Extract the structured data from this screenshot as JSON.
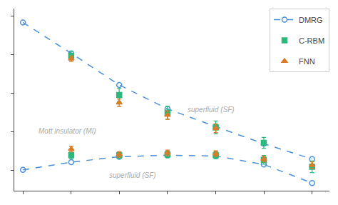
{
  "chart_data": {
    "type": "scatter",
    "x": [
      0.0,
      0.167,
      0.333,
      0.5,
      0.667,
      0.833,
      1.0
    ],
    "xlim": [
      -0.03,
      1.06
    ],
    "ylim": [
      -0.13,
      1.05
    ],
    "xticks": [
      0,
      0.16666666666666666,
      0.3333333333333333,
      0.5,
      0.6666666666666666,
      0.8333333333333334,
      1
    ],
    "yticks": [
      0.0,
      0.25,
      0.5,
      0.75,
      1.0
    ],
    "tick_labels": false,
    "grid": false,
    "legend": "upper right",
    "series": [
      {
        "name": "DMRG",
        "color": "#4a90d9",
        "marker": "circle-open",
        "line_style": "dashed",
        "values": [
          [
            0.96,
            0.76,
            0.555,
            0.4,
            0.285,
            0.175,
            0.075
          ],
          [
            0.005,
            0.055,
            0.09,
            0.1,
            0.095,
            0.04,
            -0.08
          ]
        ]
      },
      {
        "name": "C-RBM",
        "color": "#2db87e",
        "marker": "square",
        "line_style": "none",
        "values": [
          [
            null,
            0.745,
            0.49,
            0.375,
            0.28,
            0.18,
            null
          ],
          [
            null,
            0.1,
            0.1,
            0.105,
            0.1,
            0.07,
            0.025
          ]
        ],
        "errors": [
          [
            null,
            0.028,
            0.042,
            0.042,
            0.042,
            0.035,
            null
          ],
          [
            null,
            0.022,
            0.022,
            0.022,
            0.022,
            0.028,
            0.038
          ]
        ]
      },
      {
        "name": "FNN",
        "color": "#d97c2a",
        "marker": "triangle-up",
        "line_style": "none",
        "values": [
          [
            null,
            0.725,
            0.44,
            0.36,
            0.275,
            null,
            null
          ],
          [
            null,
            0.14,
            0.105,
            0.115,
            0.11,
            0.075,
            0.035
          ]
        ],
        "errors": [
          [
            null,
            0.018,
            0.024,
            0.028,
            0.028,
            null,
            null
          ],
          [
            null,
            0.018,
            0.018,
            0.018,
            0.018,
            0.018,
            0.022
          ]
        ]
      }
    ],
    "annotations": [
      {
        "text": "superfluid (SF)",
        "x": 0.65,
        "y": 0.36,
        "color": "#aaaaaa",
        "align": "center"
      },
      {
        "text": "Mott insulator (MI)",
        "x": 0.05,
        "y": 0.22,
        "color": "#aaaaaa",
        "align": "left"
      },
      {
        "text": "superfluid (SF)",
        "x": 0.38,
        "y": -0.065,
        "color": "#aaaaaa",
        "align": "center"
      }
    ]
  }
}
